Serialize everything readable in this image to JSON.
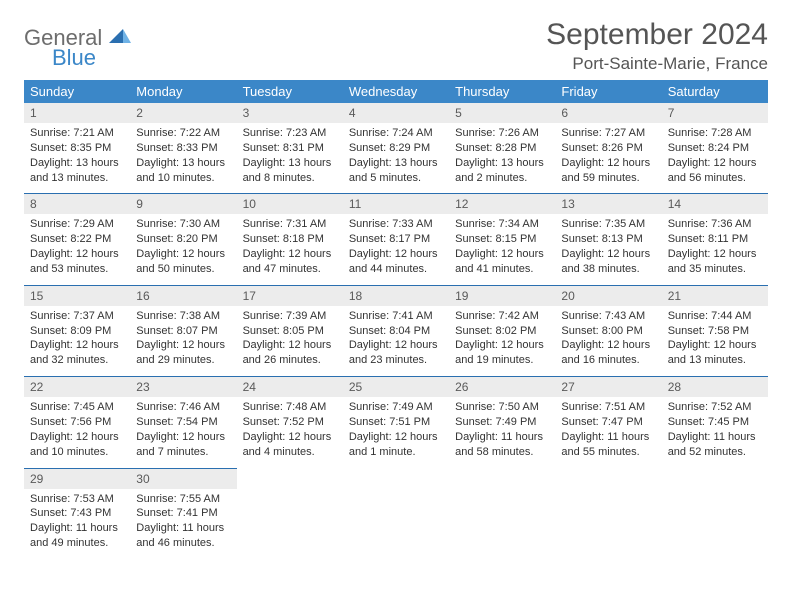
{
  "brand": {
    "word1": "General",
    "word2": "Blue"
  },
  "title": "September 2024",
  "location": "Port-Sainte-Marie, France",
  "colors": {
    "header_bg": "#3b87c8",
    "header_text": "#ffffff",
    "daynum_bg": "#ececec",
    "rule": "#2a6fb0",
    "body_text": "#333333",
    "title_text": "#555555"
  },
  "weekdays": [
    "Sunday",
    "Monday",
    "Tuesday",
    "Wednesday",
    "Thursday",
    "Friday",
    "Saturday"
  ],
  "weeks": [
    [
      {
        "n": "1",
        "sr": "7:21 AM",
        "ss": "8:35 PM",
        "dl": "13 hours and 13 minutes."
      },
      {
        "n": "2",
        "sr": "7:22 AM",
        "ss": "8:33 PM",
        "dl": "13 hours and 10 minutes."
      },
      {
        "n": "3",
        "sr": "7:23 AM",
        "ss": "8:31 PM",
        "dl": "13 hours and 8 minutes."
      },
      {
        "n": "4",
        "sr": "7:24 AM",
        "ss": "8:29 PM",
        "dl": "13 hours and 5 minutes."
      },
      {
        "n": "5",
        "sr": "7:26 AM",
        "ss": "8:28 PM",
        "dl": "13 hours and 2 minutes."
      },
      {
        "n": "6",
        "sr": "7:27 AM",
        "ss": "8:26 PM",
        "dl": "12 hours and 59 minutes."
      },
      {
        "n": "7",
        "sr": "7:28 AM",
        "ss": "8:24 PM",
        "dl": "12 hours and 56 minutes."
      }
    ],
    [
      {
        "n": "8",
        "sr": "7:29 AM",
        "ss": "8:22 PM",
        "dl": "12 hours and 53 minutes."
      },
      {
        "n": "9",
        "sr": "7:30 AM",
        "ss": "8:20 PM",
        "dl": "12 hours and 50 minutes."
      },
      {
        "n": "10",
        "sr": "7:31 AM",
        "ss": "8:18 PM",
        "dl": "12 hours and 47 minutes."
      },
      {
        "n": "11",
        "sr": "7:33 AM",
        "ss": "8:17 PM",
        "dl": "12 hours and 44 minutes."
      },
      {
        "n": "12",
        "sr": "7:34 AM",
        "ss": "8:15 PM",
        "dl": "12 hours and 41 minutes."
      },
      {
        "n": "13",
        "sr": "7:35 AM",
        "ss": "8:13 PM",
        "dl": "12 hours and 38 minutes."
      },
      {
        "n": "14",
        "sr": "7:36 AM",
        "ss": "8:11 PM",
        "dl": "12 hours and 35 minutes."
      }
    ],
    [
      {
        "n": "15",
        "sr": "7:37 AM",
        "ss": "8:09 PM",
        "dl": "12 hours and 32 minutes."
      },
      {
        "n": "16",
        "sr": "7:38 AM",
        "ss": "8:07 PM",
        "dl": "12 hours and 29 minutes."
      },
      {
        "n": "17",
        "sr": "7:39 AM",
        "ss": "8:05 PM",
        "dl": "12 hours and 26 minutes."
      },
      {
        "n": "18",
        "sr": "7:41 AM",
        "ss": "8:04 PM",
        "dl": "12 hours and 23 minutes."
      },
      {
        "n": "19",
        "sr": "7:42 AM",
        "ss": "8:02 PM",
        "dl": "12 hours and 19 minutes."
      },
      {
        "n": "20",
        "sr": "7:43 AM",
        "ss": "8:00 PM",
        "dl": "12 hours and 16 minutes."
      },
      {
        "n": "21",
        "sr": "7:44 AM",
        "ss": "7:58 PM",
        "dl": "12 hours and 13 minutes."
      }
    ],
    [
      {
        "n": "22",
        "sr": "7:45 AM",
        "ss": "7:56 PM",
        "dl": "12 hours and 10 minutes."
      },
      {
        "n": "23",
        "sr": "7:46 AM",
        "ss": "7:54 PM",
        "dl": "12 hours and 7 minutes."
      },
      {
        "n": "24",
        "sr": "7:48 AM",
        "ss": "7:52 PM",
        "dl": "12 hours and 4 minutes."
      },
      {
        "n": "25",
        "sr": "7:49 AM",
        "ss": "7:51 PM",
        "dl": "12 hours and 1 minute."
      },
      {
        "n": "26",
        "sr": "7:50 AM",
        "ss": "7:49 PM",
        "dl": "11 hours and 58 minutes."
      },
      {
        "n": "27",
        "sr": "7:51 AM",
        "ss": "7:47 PM",
        "dl": "11 hours and 55 minutes."
      },
      {
        "n": "28",
        "sr": "7:52 AM",
        "ss": "7:45 PM",
        "dl": "11 hours and 52 minutes."
      }
    ],
    [
      {
        "n": "29",
        "sr": "7:53 AM",
        "ss": "7:43 PM",
        "dl": "11 hours and 49 minutes."
      },
      {
        "n": "30",
        "sr": "7:55 AM",
        "ss": "7:41 PM",
        "dl": "11 hours and 46 minutes."
      },
      null,
      null,
      null,
      null,
      null
    ]
  ],
  "labels": {
    "sunrise": "Sunrise:",
    "sunset": "Sunset:",
    "daylight": "Daylight:"
  }
}
